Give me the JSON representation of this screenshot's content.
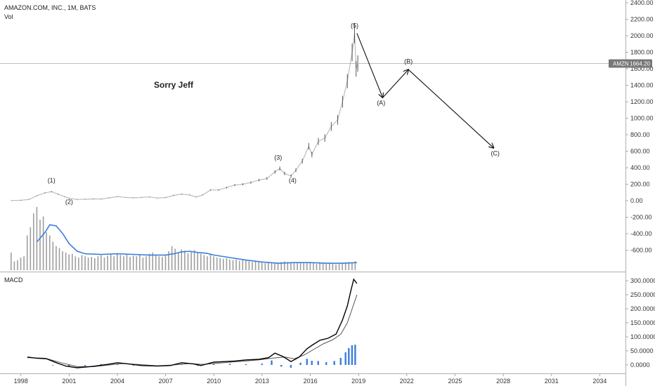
{
  "header": {
    "symbol_line": "AMAZON.COM, INC., 1M, BATS",
    "volume_label": "Vol"
  },
  "annotation_text": "Sorry Jeff",
  "macd_pane_label": "MACD",
  "price_badge": {
    "symbol": "AMZN",
    "value": "1664.20"
  },
  "colors": {
    "price_line": "#bdbdbd",
    "candle_dark": "#333333",
    "volume_bar": "#9e9e9e",
    "volume_ma": "#3b7ddd",
    "macd_line": "#000000",
    "signal_line": "#555555",
    "histogram": "#3b7ddd",
    "badge_bg": "#777777"
  },
  "chart_data": {
    "type": "line",
    "price_axis": {
      "ticks": [
        "2400.00",
        "2200.00",
        "2000.00",
        "1800.00",
        "1600.00",
        "1400.00",
        "1200.00",
        "1000.00",
        "800.00",
        "600.00",
        "400.00",
        "200.00",
        "0.00",
        "-200.00",
        "-400.00",
        "-600.00"
      ],
      "ylim": [
        -800,
        2400
      ]
    },
    "macd_axis": {
      "ticks": [
        "300.0000",
        "250.0000",
        "200.0000",
        "150.0000",
        "100.0000",
        "50.0000",
        "0.0000"
      ],
      "ylim": [
        -20,
        320
      ]
    },
    "x_axis": {
      "ticks": [
        "1998",
        "2001",
        "2004",
        "2007",
        "2010",
        "2013",
        "2016",
        "2019",
        "2022",
        "2025",
        "2028",
        "2031",
        "2034"
      ],
      "xlim": [
        1996.7,
        2035.6
      ]
    },
    "current_price": 1664.2,
    "price_series": [
      [
        1997.4,
        2
      ],
      [
        1998.0,
        5
      ],
      [
        1998.5,
        15
      ],
      [
        1999.0,
        60
      ],
      [
        1999.5,
        95
      ],
      [
        1999.9,
        110
      ],
      [
        2000.3,
        80
      ],
      [
        2000.7,
        50
      ],
      [
        2001.0,
        30
      ],
      [
        2001.5,
        15
      ],
      [
        2002.0,
        18
      ],
      [
        2002.5,
        22
      ],
      [
        2003.0,
        20
      ],
      [
        2003.5,
        35
      ],
      [
        2004.0,
        50
      ],
      [
        2004.5,
        40
      ],
      [
        2005.0,
        35
      ],
      [
        2005.5,
        40
      ],
      [
        2006.0,
        45
      ],
      [
        2006.5,
        32
      ],
      [
        2007.0,
        38
      ],
      [
        2007.5,
        65
      ],
      [
        2008.0,
        80
      ],
      [
        2008.5,
        70
      ],
      [
        2008.9,
        45
      ],
      [
        2009.3,
        70
      ],
      [
        2009.8,
        130
      ],
      [
        2010.3,
        130
      ],
      [
        2010.8,
        160
      ],
      [
        2011.3,
        190
      ],
      [
        2011.8,
        200
      ],
      [
        2012.3,
        220
      ],
      [
        2012.8,
        250
      ],
      [
        2013.3,
        270
      ],
      [
        2013.8,
        350
      ],
      [
        2014.1,
        390
      ],
      [
        2014.4,
        330
      ],
      [
        2014.8,
        300
      ],
      [
        2015.1,
        370
      ],
      [
        2015.5,
        480
      ],
      [
        2015.9,
        660
      ],
      [
        2016.1,
        560
      ],
      [
        2016.5,
        720
      ],
      [
        2016.9,
        760
      ],
      [
        2017.3,
        900
      ],
      [
        2017.7,
        980
      ],
      [
        2018.0,
        1200
      ],
      [
        2018.3,
        1450
      ],
      [
        2018.6,
        1800
      ],
      [
        2018.75,
        2030
      ],
      [
        2018.85,
        1600
      ],
      [
        2018.95,
        1664
      ]
    ],
    "wave_projection": {
      "points": [
        [
          2018.9,
          2030
        ],
        [
          2020.5,
          1250
        ],
        [
          2022.1,
          1590
        ],
        [
          2027.4,
          640
        ]
      ],
      "labels": [
        {
          "text": "(A)",
          "x": 2020.4,
          "y": 1160
        },
        {
          "text": "(B)",
          "x": 2022.1,
          "y": 1665
        },
        {
          "text": "(C)",
          "x": 2027.5,
          "y": 550
        }
      ]
    },
    "wave_labels": [
      {
        "text": "(1)",
        "x": 1999.9,
        "y": 220
      },
      {
        "text": "(2)",
        "x": 2001.0,
        "y": -40
      },
      {
        "text": "(3)",
        "x": 2014.0,
        "y": 500
      },
      {
        "text": "(4)",
        "x": 2014.9,
        "y": 220
      },
      {
        "text": "(5)",
        "x": 2018.75,
        "y": 2100
      }
    ],
    "volume_bars": [
      [
        1997.4,
        0.28
      ],
      [
        1997.6,
        0.14
      ],
      [
        1997.8,
        0.16
      ],
      [
        1998.0,
        0.2
      ],
      [
        1998.2,
        0.22
      ],
      [
        1998.4,
        0.55
      ],
      [
        1998.6,
        0.68
      ],
      [
        1998.8,
        0.9
      ],
      [
        1999.0,
        1.0
      ],
      [
        1999.2,
        0.8
      ],
      [
        1999.4,
        0.85
      ],
      [
        1999.6,
        0.6
      ],
      [
        1999.8,
        0.55
      ],
      [
        2000.0,
        0.45
      ],
      [
        2000.2,
        0.38
      ],
      [
        2000.4,
        0.35
      ],
      [
        2000.6,
        0.3
      ],
      [
        2000.8,
        0.28
      ],
      [
        2001.0,
        0.25
      ],
      [
        2001.2,
        0.26
      ],
      [
        2001.4,
        0.22
      ],
      [
        2001.6,
        0.2
      ],
      [
        2001.8,
        0.24
      ],
      [
        2002.0,
        0.22
      ],
      [
        2002.2,
        0.2
      ],
      [
        2002.4,
        0.21
      ],
      [
        2002.6,
        0.19
      ],
      [
        2002.8,
        0.22
      ],
      [
        2003.0,
        0.24
      ],
      [
        2003.2,
        0.2
      ],
      [
        2003.4,
        0.23
      ],
      [
        2003.6,
        0.26
      ],
      [
        2003.8,
        0.22
      ],
      [
        2004.0,
        0.27
      ],
      [
        2004.2,
        0.24
      ],
      [
        2004.4,
        0.22
      ],
      [
        2004.6,
        0.25
      ],
      [
        2004.8,
        0.21
      ],
      [
        2005.0,
        0.23
      ],
      [
        2005.2,
        0.22
      ],
      [
        2005.4,
        0.24
      ],
      [
        2005.6,
        0.2
      ],
      [
        2005.8,
        0.22
      ],
      [
        2006.0,
        0.26
      ],
      [
        2006.2,
        0.28
      ],
      [
        2006.4,
        0.24
      ],
      [
        2006.6,
        0.22
      ],
      [
        2006.8,
        0.21
      ],
      [
        2007.0,
        0.23
      ],
      [
        2007.2,
        0.3
      ],
      [
        2007.4,
        0.38
      ],
      [
        2007.6,
        0.34
      ],
      [
        2007.8,
        0.28
      ],
      [
        2008.0,
        0.33
      ],
      [
        2008.2,
        0.31
      ],
      [
        2008.4,
        0.27
      ],
      [
        2008.6,
        0.3
      ],
      [
        2008.8,
        0.32
      ],
      [
        2009.0,
        0.28
      ],
      [
        2009.2,
        0.26
      ],
      [
        2009.4,
        0.24
      ],
      [
        2009.6,
        0.22
      ],
      [
        2009.8,
        0.25
      ],
      [
        2010.0,
        0.22
      ],
      [
        2010.2,
        0.2
      ],
      [
        2010.4,
        0.19
      ],
      [
        2010.6,
        0.18
      ],
      [
        2010.8,
        0.19
      ],
      [
        2011.0,
        0.17
      ],
      [
        2011.2,
        0.16
      ],
      [
        2011.4,
        0.17
      ],
      [
        2011.6,
        0.15
      ],
      [
        2011.8,
        0.16
      ],
      [
        2012.0,
        0.15
      ],
      [
        2012.2,
        0.14
      ],
      [
        2012.4,
        0.13
      ],
      [
        2012.6,
        0.14
      ],
      [
        2012.8,
        0.13
      ],
      [
        2013.0,
        0.12
      ],
      [
        2013.2,
        0.11
      ],
      [
        2013.4,
        0.12
      ],
      [
        2013.6,
        0.11
      ],
      [
        2013.8,
        0.12
      ],
      [
        2014.0,
        0.12
      ],
      [
        2014.2,
        0.13
      ],
      [
        2014.4,
        0.14
      ],
      [
        2014.6,
        0.13
      ],
      [
        2014.8,
        0.12
      ],
      [
        2015.0,
        0.11
      ],
      [
        2015.2,
        0.12
      ],
      [
        2015.4,
        0.13
      ],
      [
        2015.6,
        0.12
      ],
      [
        2015.8,
        0.11
      ],
      [
        2016.0,
        0.12
      ],
      [
        2016.2,
        0.11
      ],
      [
        2016.4,
        0.1
      ],
      [
        2016.6,
        0.11
      ],
      [
        2016.8,
        0.12
      ],
      [
        2017.0,
        0.1
      ],
      [
        2017.2,
        0.11
      ],
      [
        2017.4,
        0.1
      ],
      [
        2017.6,
        0.09
      ],
      [
        2017.8,
        0.1
      ],
      [
        2018.0,
        0.11
      ],
      [
        2018.2,
        0.12
      ],
      [
        2018.4,
        0.13
      ],
      [
        2018.6,
        0.12
      ],
      [
        2018.8,
        0.14
      ]
    ],
    "volume_ma": [
      [
        1999.0,
        0.45
      ],
      [
        1999.5,
        0.6
      ],
      [
        1999.8,
        0.72
      ],
      [
        2000.2,
        0.7
      ],
      [
        2000.6,
        0.58
      ],
      [
        2001.0,
        0.42
      ],
      [
        2001.5,
        0.3
      ],
      [
        2002.0,
        0.26
      ],
      [
        2003.0,
        0.25
      ],
      [
        2004.0,
        0.26
      ],
      [
        2005.0,
        0.25
      ],
      [
        2006.0,
        0.24
      ],
      [
        2007.0,
        0.24
      ],
      [
        2007.5,
        0.26
      ],
      [
        2008.0,
        0.29
      ],
      [
        2008.5,
        0.3
      ],
      [
        2009.0,
        0.28
      ],
      [
        2009.5,
        0.27
      ],
      [
        2010.0,
        0.24
      ],
      [
        2011.0,
        0.2
      ],
      [
        2012.0,
        0.16
      ],
      [
        2013.0,
        0.13
      ],
      [
        2014.0,
        0.11
      ],
      [
        2015.0,
        0.12
      ],
      [
        2016.0,
        0.12
      ],
      [
        2017.0,
        0.11
      ],
      [
        2018.0,
        0.11
      ],
      [
        2018.9,
        0.12
      ]
    ],
    "macd_line": [
      [
        1998.4,
        28
      ],
      [
        1999.0,
        24
      ],
      [
        1999.6,
        22
      ],
      [
        2000.2,
        8
      ],
      [
        2000.8,
        -4
      ],
      [
        2001.5,
        -10
      ],
      [
        2002.5,
        -5
      ],
      [
        2003.5,
        3
      ],
      [
        2004.0,
        8
      ],
      [
        2004.8,
        3
      ],
      [
        2005.5,
        -2
      ],
      [
        2006.5,
        -4
      ],
      [
        2007.3,
        -2
      ],
      [
        2008.0,
        8
      ],
      [
        2008.7,
        4
      ],
      [
        2009.2,
        -2
      ],
      [
        2010.0,
        10
      ],
      [
        2010.7,
        12
      ],
      [
        2011.3,
        14
      ],
      [
        2012.0,
        18
      ],
      [
        2012.8,
        20
      ],
      [
        2013.4,
        26
      ],
      [
        2013.8,
        42
      ],
      [
        2014.3,
        30
      ],
      [
        2014.8,
        12
      ],
      [
        2015.3,
        28
      ],
      [
        2015.8,
        58
      ],
      [
        2016.1,
        70
      ],
      [
        2016.6,
        88
      ],
      [
        2017.1,
        95
      ],
      [
        2017.6,
        110
      ],
      [
        2018.0,
        160
      ],
      [
        2018.3,
        210
      ],
      [
        2018.5,
        260
      ],
      [
        2018.7,
        305
      ],
      [
        2018.9,
        290
      ]
    ],
    "signal_line": [
      [
        1998.4,
        26
      ],
      [
        1999.5,
        24
      ],
      [
        2000.5,
        8
      ],
      [
        2001.5,
        -6
      ],
      [
        2002.5,
        -6
      ],
      [
        2003.5,
        0
      ],
      [
        2004.3,
        5
      ],
      [
        2005.5,
        1
      ],
      [
        2006.5,
        -3
      ],
      [
        2007.5,
        0
      ],
      [
        2008.5,
        5
      ],
      [
        2009.3,
        2
      ],
      [
        2010.2,
        6
      ],
      [
        2011.0,
        10
      ],
      [
        2012.0,
        14
      ],
      [
        2012.8,
        18
      ],
      [
        2013.6,
        24
      ],
      [
        2014.4,
        28
      ],
      [
        2015.0,
        22
      ],
      [
        2015.6,
        35
      ],
      [
        2016.2,
        55
      ],
      [
        2016.8,
        75
      ],
      [
        2017.4,
        90
      ],
      [
        2017.9,
        110
      ],
      [
        2018.3,
        150
      ],
      [
        2018.6,
        200
      ],
      [
        2018.9,
        250
      ]
    ],
    "histogram": [
      [
        2000.0,
        -2
      ],
      [
        2001.0,
        -6
      ],
      [
        2002.0,
        -4
      ],
      [
        2003.0,
        3
      ],
      [
        2004.0,
        3
      ],
      [
        2005.0,
        -3
      ],
      [
        2006.0,
        -2
      ],
      [
        2007.0,
        -2
      ],
      [
        2008.0,
        4
      ],
      [
        2009.0,
        -3
      ],
      [
        2010.0,
        4
      ],
      [
        2011.0,
        4
      ],
      [
        2012.0,
        3
      ],
      [
        2013.0,
        5
      ],
      [
        2013.6,
        16
      ],
      [
        2014.2,
        -6
      ],
      [
        2014.8,
        -10
      ],
      [
        2015.4,
        8
      ],
      [
        2015.8,
        22
      ],
      [
        2016.1,
        15
      ],
      [
        2016.5,
        14
      ],
      [
        2017.0,
        10
      ],
      [
        2017.5,
        14
      ],
      [
        2017.9,
        25
      ],
      [
        2018.2,
        45
      ],
      [
        2018.4,
        60
      ],
      [
        2018.6,
        70
      ],
      [
        2018.8,
        72
      ]
    ]
  }
}
